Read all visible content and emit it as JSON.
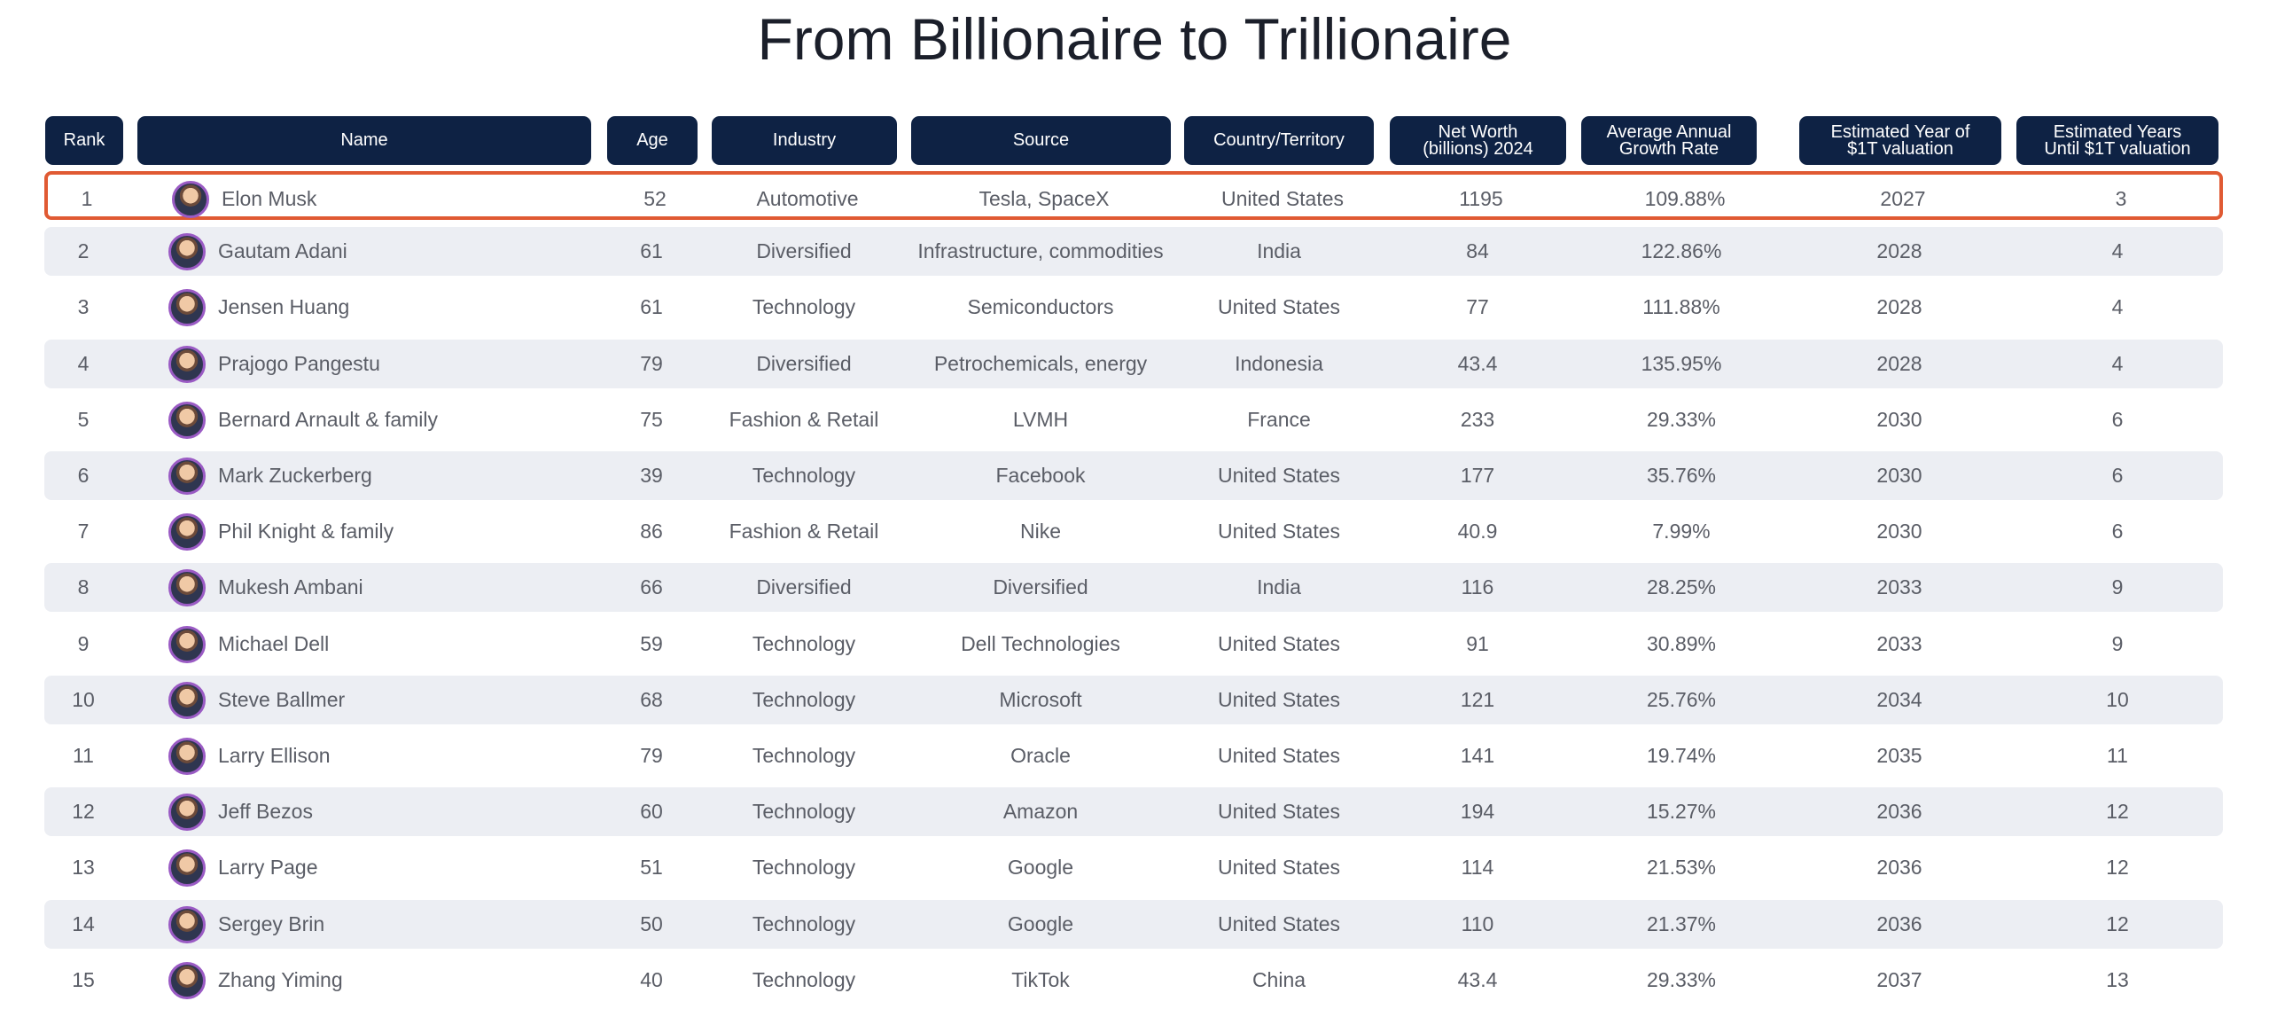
{
  "title": "From Billionaire to Trillionaire",
  "chart_data": {
    "type": "table",
    "title": "From Billionaire to Trillionaire",
    "columns": [
      "Rank",
      "Name",
      "Age",
      "Industry",
      "Source",
      "Country/Territory",
      "Net Worth\n(billions) 2024",
      "Average Annual\nGrowth Rate",
      "Estimated Year of\n$1T valuation",
      "Estimated Years\nUntil $1T valuation"
    ],
    "rows": [
      [
        "1",
        "Elon Musk",
        "52",
        "Automotive",
        "Tesla, SpaceX",
        "United States",
        "1195",
        "109.88%",
        "2027",
        "3"
      ],
      [
        "2",
        "Gautam Adani",
        "61",
        "Diversified",
        "Infrastructure, commodities",
        "India",
        "84",
        "122.86%",
        "2028",
        "4"
      ],
      [
        "3",
        "Jensen Huang",
        "61",
        "Technology",
        "Semiconductors",
        "United States",
        "77",
        "111.88%",
        "2028",
        "4"
      ],
      [
        "4",
        "Prajogo Pangestu",
        "79",
        "Diversified",
        "Petrochemicals, energy",
        "Indonesia",
        "43.4",
        "135.95%",
        "2028",
        "4"
      ],
      [
        "5",
        "Bernard Arnault & family",
        "75",
        "Fashion & Retail",
        "LVMH",
        "France",
        "233",
        "29.33%",
        "2030",
        "6"
      ],
      [
        "6",
        "Mark Zuckerberg",
        "39",
        "Technology",
        "Facebook",
        "United States",
        "177",
        "35.76%",
        "2030",
        "6"
      ],
      [
        "7",
        "Phil Knight & family",
        "86",
        "Fashion & Retail",
        "Nike",
        "United States",
        "40.9",
        "7.99%",
        "2030",
        "6"
      ],
      [
        "8",
        "Mukesh Ambani",
        "66",
        "Diversified",
        "Diversified",
        "India",
        "116",
        "28.25%",
        "2033",
        "9"
      ],
      [
        "9",
        "Michael Dell",
        "59",
        "Technology",
        "Dell Technologies",
        "United States",
        "91",
        "30.89%",
        "2033",
        "9"
      ],
      [
        "10",
        "Steve Ballmer",
        "68",
        "Technology",
        "Microsoft",
        "United States",
        "121",
        "25.76%",
        "2034",
        "10"
      ],
      [
        "11",
        "Larry Ellison",
        "79",
        "Technology",
        "Oracle",
        "United States",
        "141",
        "19.74%",
        "2035",
        "11"
      ],
      [
        "12",
        "Jeff Bezos",
        "60",
        "Technology",
        "Amazon",
        "United States",
        "194",
        "15.27%",
        "2036",
        "12"
      ],
      [
        "13",
        "Larry Page",
        "51",
        "Technology",
        "Google",
        "United States",
        "114",
        "21.53%",
        "2036",
        "12"
      ],
      [
        "14",
        "Sergey Brin",
        "50",
        "Technology",
        "Google",
        "United States",
        "110",
        "21.37%",
        "2036",
        "12"
      ],
      [
        "15",
        "Zhang Yiming",
        "40",
        "Technology",
        "TikTok",
        "China",
        "43.4",
        "29.33%",
        "2037",
        "13"
      ]
    ],
    "highlighted_row": 0
  },
  "colors": {
    "header_bg": "#0e2244",
    "header_text": "#ffffff",
    "row_alt_bg": "#eceef3",
    "highlight_border": "#e05a33",
    "avatar_border": "#9a5bc4",
    "body_text": "#5a5d66"
  }
}
